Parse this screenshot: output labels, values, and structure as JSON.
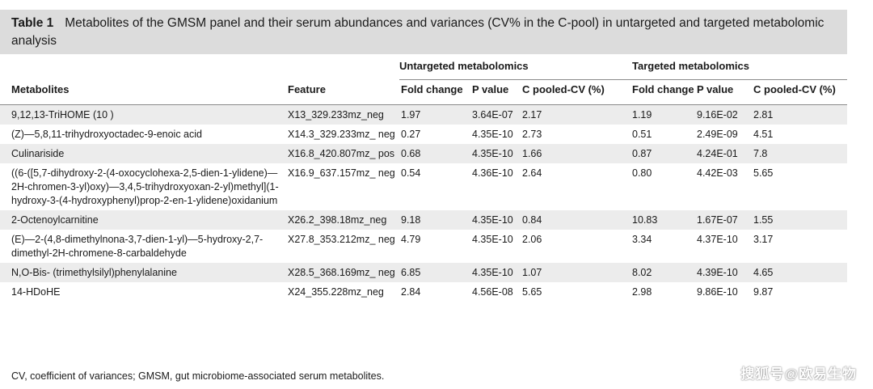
{
  "caption": {
    "label": "Table 1",
    "text": "Metabolites of the GMSM panel and their serum abundances and variances (CV% in the C-pool) in untargeted and targeted metabolomic analysis"
  },
  "group_headers": {
    "untargeted": "Untargeted metabolomics",
    "targeted": "Targeted metabolomics"
  },
  "columns": [
    "Metabolites",
    "Feature",
    "Fold change",
    "P value",
    "C pooled-CV (%)",
    "Fold change",
    "P value",
    "C pooled-CV (%)"
  ],
  "rows": [
    {
      "metabolite": "9,12,13-TriHOME (10 )",
      "feature": "X13_329.233mz_neg",
      "u_fc": "1.97",
      "u_p": "3.64E-07",
      "u_cv": "2.17",
      "t_fc": "1.19",
      "t_p": "9.16E-02",
      "t_cv": "2.81"
    },
    {
      "metabolite": "(Z)—5,8,11-trihydroxyoctadec-9-enoic acid",
      "feature": "X14.3_329.233mz_ neg",
      "u_fc": "0.27",
      "u_p": "4.35E-10",
      "u_cv": "2.73",
      "t_fc": "0.51",
      "t_p": "2.49E-09",
      "t_cv": "4.51"
    },
    {
      "metabolite": "Culinariside",
      "feature": "X16.8_420.807mz_ pos",
      "u_fc": "0.68",
      "u_p": "4.35E-10",
      "u_cv": "1.66",
      "t_fc": "0.87",
      "t_p": "4.24E-01",
      "t_cv": "7.8"
    },
    {
      "metabolite": "((6-([5,7-dihydroxy-2-(4-oxocyclohexa-2,5-dien-1-ylidene)—2H-chromen-3-yl)oxy)—3,4,5-trihydroxyoxan-2-yl)methyl](1-hydroxy-3-(4-hydroxyphenyl)prop-2-en-1-ylidene)oxidanium",
      "feature": "X16.9_637.157mz_ neg",
      "u_fc": "0.54",
      "u_p": "4.36E-10",
      "u_cv": "2.64",
      "t_fc": "0.80",
      "t_p": "4.42E-03",
      "t_cv": "5.65"
    },
    {
      "metabolite": "2-Octenoylcarnitine",
      "feature": "X26.2_398.18mz_neg",
      "u_fc": "9.18",
      "u_p": "4.35E-10",
      "u_cv": "0.84",
      "t_fc": "10.83",
      "t_p": "1.67E-07",
      "t_cv": "1.55"
    },
    {
      "metabolite": "(E)—2-(4,8-dimethylnona-3,7-dien-1-yl)—5-hydroxy-2,7-dimethyl-2H-chromene-8-carbaldehyde",
      "feature": "X27.8_353.212mz_ neg",
      "u_fc": "4.79",
      "u_p": "4.35E-10",
      "u_cv": "2.06",
      "t_fc": "3.34",
      "t_p": "4.37E-10",
      "t_cv": "3.17"
    },
    {
      "metabolite": "N,O-Bis- (trimethylsilyl)phenylalanine",
      "feature": "X28.5_368.169mz_ neg",
      "u_fc": "6.85",
      "u_p": "4.35E-10",
      "u_cv": "1.07",
      "t_fc": "8.02",
      "t_p": "4.39E-10",
      "t_cv": "4.65"
    },
    {
      "metabolite": "14-HDoHE",
      "feature": "X24_355.228mz_neg",
      "u_fc": "2.84",
      "u_p": "4.56E-08",
      "u_cv": "5.65",
      "t_fc": "2.98",
      "t_p": "9.86E-10",
      "t_cv": "9.87"
    }
  ],
  "footnote": "CV, coefficient of variances; GMSM, gut microbiome-associated serum metabolites.",
  "watermark": "搜狐号@欧易生物",
  "colors": {
    "caption_bg": "#dcdcdc",
    "row_shade": "#ececec"
  }
}
